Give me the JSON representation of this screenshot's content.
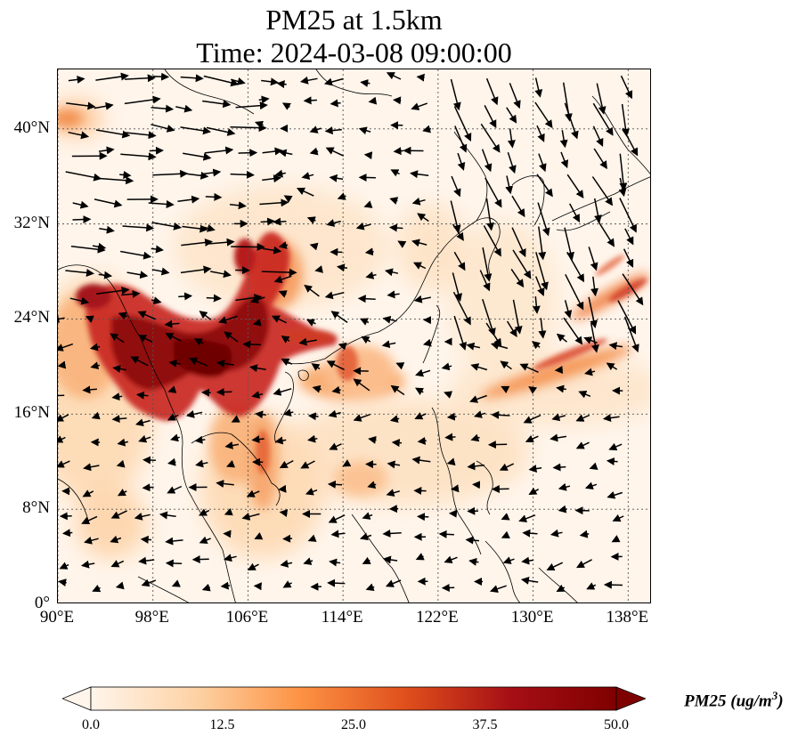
{
  "title": {
    "line1": "PM25 at 1.5km",
    "line2": "Time: 2024-03-08 09:00:00"
  },
  "map": {
    "lon_range": [
      90,
      140
    ],
    "lat_range": [
      0,
      45
    ],
    "lat_ticks": [
      {
        "value": 40,
        "label": "40°N"
      },
      {
        "value": 32,
        "label": "32°N"
      },
      {
        "value": 24,
        "label": "24°N"
      },
      {
        "value": 16,
        "label": "16°N"
      },
      {
        "value": 8,
        "label": "8°N"
      },
      {
        "value": 0,
        "label": "0°"
      }
    ],
    "lon_ticks": [
      {
        "value": 90,
        "label": "90°E"
      },
      {
        "value": 98,
        "label": "98°E"
      },
      {
        "value": 106,
        "label": "106°E"
      },
      {
        "value": 114,
        "label": "114°E"
      },
      {
        "value": 122,
        "label": "122°E"
      },
      {
        "value": 130,
        "label": "130°E"
      },
      {
        "value": 138,
        "label": "138°E"
      }
    ],
    "gridlines": true,
    "background_color": "#fff5eb"
  },
  "colorbar": {
    "title_main": "PM25 (ug/m",
    "title_sup": "3",
    "title_close": ")",
    "min": 0,
    "max": 50,
    "ticks": [
      {
        "value": 0,
        "label": "0.0"
      },
      {
        "value": 12.5,
        "label": "12.5"
      },
      {
        "value": 25,
        "label": "25.0"
      },
      {
        "value": 37.5,
        "label": "37.5"
      },
      {
        "value": 50,
        "label": "50.0"
      }
    ],
    "colors": [
      "#fff5eb",
      "#fdd2a5",
      "#fd9243",
      "#df4f1c",
      "#a50f15",
      "#7f0000"
    ],
    "extend": "both"
  }
}
